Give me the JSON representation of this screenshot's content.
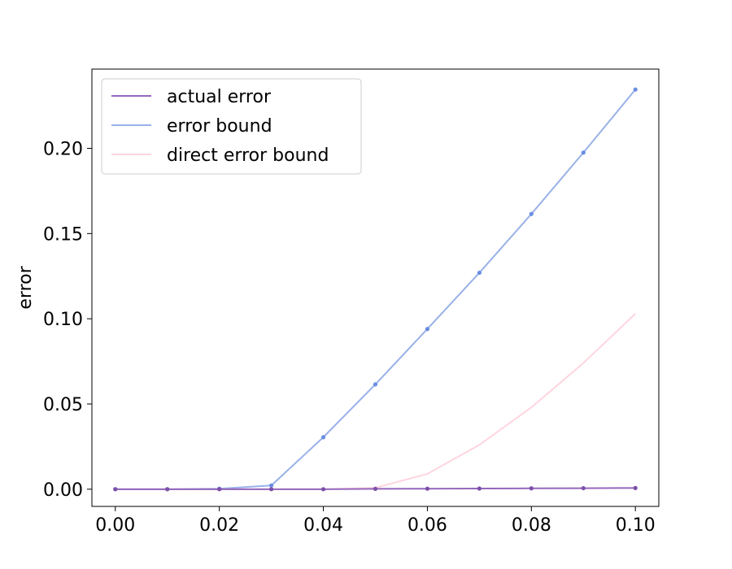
{
  "chart_data": {
    "type": "line",
    "title": "",
    "xlabel": "",
    "ylabel": "error",
    "xlim": [
      -0.0045,
      0.1045
    ],
    "ylim": [
      -0.0101,
      0.2465
    ],
    "xticks": [
      0.0,
      0.02,
      0.04,
      0.06,
      0.08,
      0.1
    ],
    "xtick_labels": [
      "0.00",
      "0.02",
      "0.04",
      "0.06",
      "0.08",
      "0.10"
    ],
    "yticks": [
      0.0,
      0.05,
      0.1,
      0.15,
      0.2
    ],
    "ytick_labels": [
      "0.00",
      "0.05",
      "0.10",
      "0.15",
      "0.20"
    ],
    "grid": false,
    "legend_position": "top-left",
    "x": [
      0.0,
      0.01,
      0.02,
      0.03,
      0.04,
      0.05,
      0.06,
      0.07,
      0.08,
      0.09,
      0.1
    ],
    "series": [
      {
        "name": "actual error",
        "color": "#9467bd",
        "marker_color": "#7d4fa8",
        "markers": true,
        "values": [
          0.0,
          0.0,
          0.0,
          0.0,
          0.0,
          0.0002,
          0.0003,
          0.0004,
          0.0005,
          0.0006,
          0.0007
        ]
      },
      {
        "name": "error bound",
        "color": "#99b1e8",
        "marker_color": "#6a8ee0",
        "markers": true,
        "values": [
          0.0,
          0.0,
          0.0003,
          0.0022,
          0.0305,
          0.0615,
          0.094,
          0.127,
          0.1615,
          0.1975,
          0.2345
        ]
      },
      {
        "name": "direct error bound",
        "color": "#ffd5df",
        "markers": false,
        "values": [
          0.0,
          0.0,
          0.0,
          0.0,
          0.0,
          0.0008,
          0.009,
          0.026,
          0.048,
          0.074,
          0.103
        ]
      }
    ]
  }
}
